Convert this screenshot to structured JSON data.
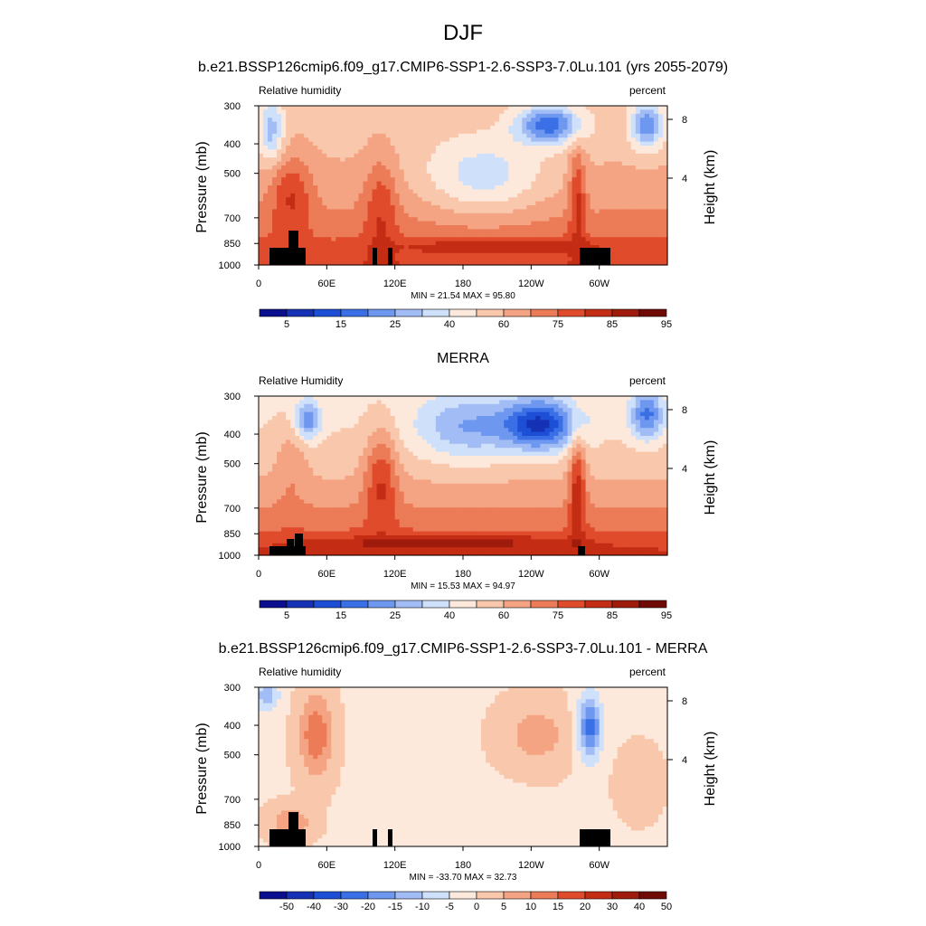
{
  "figure": {
    "title": "DJF"
  },
  "colorbar_colors": {
    "sequential": [
      "#0b0e8f",
      "#1531b4",
      "#1c4fd6",
      "#3a6fe6",
      "#6e98ef",
      "#a2bdf5",
      "#cfe0fa",
      "#fde9dc",
      "#f9c8ac",
      "#f4a482",
      "#ec7b57",
      "#e04b2c",
      "#c42d14",
      "#9f1b0c",
      "#6f0a06"
    ],
    "diverging": [
      "#0b0e8f",
      "#1531b4",
      "#1c4fd6",
      "#3a6fe6",
      "#6e98ef",
      "#a2bdf5",
      "#cfe0fa",
      "#fde9dc",
      "#f9c8ac",
      "#f4a482",
      "#ec7b57",
      "#e04b2c",
      "#c42d14",
      "#9f1b0c",
      "#6f0a06"
    ]
  },
  "chart_data": [
    {
      "type": "heatmap",
      "title": "b.e21.BSSP126cmip6.f09_g17.CMIP6-SSP1-2.6-SSP3-7.0Lu.101 (yrs 2055-2079)",
      "left_label": "Relative humidity",
      "right_label": "percent",
      "ylabel": "Pressure (mb)",
      "y2label": "Height (km)",
      "x_ticks": [
        "0",
        "60E",
        "120E",
        "180",
        "120W",
        "60W"
      ],
      "y_ticks": [
        "300",
        "400",
        "500",
        "700",
        "850",
        "1000"
      ],
      "y2_ticks": [
        "8",
        "4"
      ],
      "stats": "MIN =  21.54  MAX =  95.80",
      "colorbar_labels": [
        "5",
        "15",
        "25",
        "40",
        "60",
        "75",
        "85",
        "95"
      ],
      "field_min": 21.54,
      "field_max": 95.8
    },
    {
      "type": "heatmap",
      "title": "MERRA",
      "left_label": "Relative Humidity",
      "right_label": "percent",
      "ylabel": "Pressure (mb)",
      "y2label": "Height (km)",
      "x_ticks": [
        "0",
        "60E",
        "120E",
        "180",
        "120W",
        "60W"
      ],
      "y_ticks": [
        "300",
        "400",
        "500",
        "700",
        "850",
        "1000"
      ],
      "y2_ticks": [
        "8",
        "4"
      ],
      "stats": "MIN =  15.53  MAX =  94.97",
      "colorbar_labels": [
        "5",
        "15",
        "25",
        "40",
        "60",
        "75",
        "85",
        "95"
      ],
      "field_min": 15.53,
      "field_max": 94.97
    },
    {
      "type": "heatmap",
      "title": "b.e21.BSSP126cmip6.f09_g17.CMIP6-SSP1-2.6-SSP3-7.0Lu.101 - MERRA",
      "left_label": "Relative humidity",
      "right_label": "percent",
      "ylabel": "Pressure (mb)",
      "y2label": "Height (km)",
      "x_ticks": [
        "0",
        "60E",
        "120E",
        "180",
        "120W",
        "60W"
      ],
      "y_ticks": [
        "300",
        "400",
        "500",
        "700",
        "850",
        "1000"
      ],
      "y2_ticks": [
        "8",
        "4"
      ],
      "stats": "MIN = -33.70  MAX =  32.73",
      "colorbar_labels": [
        "-50",
        "-40",
        "-30",
        "-20",
        "-15",
        "-10",
        "-5",
        "0",
        "5",
        "10",
        "15",
        "20",
        "30",
        "40",
        "50"
      ],
      "field_min": -33.7,
      "field_max": 32.73
    }
  ]
}
